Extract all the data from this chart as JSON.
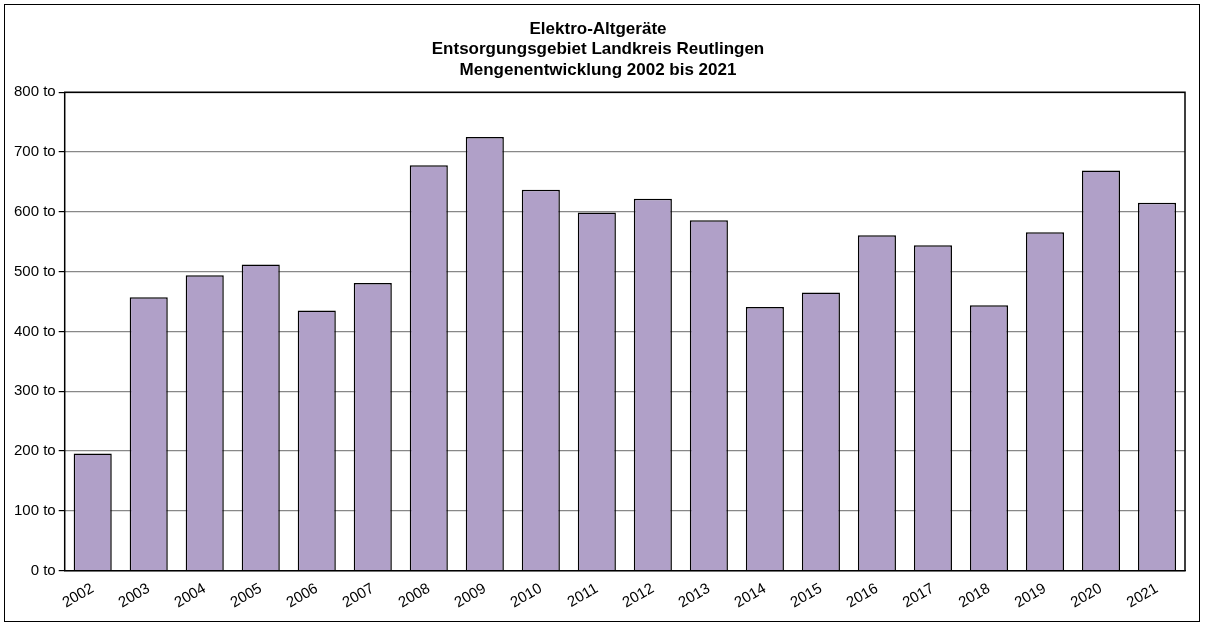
{
  "chart_data": {
    "type": "bar",
    "title": [
      "Elektro-Altgeräte",
      "Entsorgungsgebiet Landkreis Reutlingen",
      "Mengenentwicklung 2002 bis 2021"
    ],
    "categories": [
      "2002",
      "2003",
      "2004",
      "2005",
      "2006",
      "2007",
      "2008",
      "2009",
      "2010",
      "2011",
      "2012",
      "2013",
      "2014",
      "2015",
      "2016",
      "2017",
      "2018",
      "2019",
      "2020",
      "2021"
    ],
    "values": [
      196,
      457,
      494,
      512,
      435,
      481,
      678,
      725,
      637,
      599,
      622,
      586,
      441,
      465,
      561,
      544,
      444,
      566,
      669,
      615
    ],
    "color": "#b0a0c8",
    "ylim": [
      0,
      800
    ],
    "yticks": [
      {
        "value": 0,
        "label": "0 to"
      },
      {
        "value": 100,
        "label": "100 to"
      },
      {
        "value": 200,
        "label": "200 to"
      },
      {
        "value": 300,
        "label": "300 to"
      },
      {
        "value": 400,
        "label": "400 to"
      },
      {
        "value": 500,
        "label": "500 to"
      },
      {
        "value": 600,
        "label": "600 to"
      },
      {
        "value": 700,
        "label": "700 to"
      },
      {
        "value": 800,
        "label": "800 to"
      }
    ],
    "grid": "y"
  }
}
